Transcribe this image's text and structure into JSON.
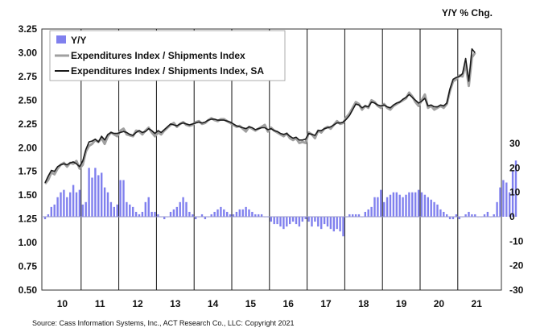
{
  "chart_data": {
    "type": "line",
    "title": "",
    "right_axis_title": "Y/Y % Chg.",
    "source": "Source: Cass Information Systems, Inc., ACT Research Co., LLC: Copyright 2021",
    "left_axis": {
      "ylim": [
        0.5,
        3.25
      ],
      "ticks": [
        "3.25",
        "3.00",
        "2.75",
        "2.50",
        "2.25",
        "2.00",
        "1.75",
        "1.50",
        "1.25",
        "1.00",
        "0.75",
        "0.50"
      ]
    },
    "right_axis": {
      "ylim": [
        -30,
        30
      ],
      "ticks": [
        "30",
        "20",
        "10",
        "0",
        "-10",
        "-20",
        "-30"
      ]
    },
    "x_axis": {
      "ticks": [
        "10",
        "11",
        "12",
        "13",
        "14",
        "15",
        "16",
        "17",
        "18",
        "19",
        "20",
        "21"
      ]
    },
    "grid": "vertical-year-lines",
    "legend_position": "top-left",
    "colors": {
      "yoy": "#8080ee",
      "index": "#a0a0a0",
      "index_sa": "#1a1a1a"
    },
    "series": [
      {
        "name": "Y/Y",
        "kind": "bar",
        "axis": "right",
        "start": "2010-01",
        "values": [
          -1,
          1,
          4,
          5,
          8,
          10,
          11,
          8,
          10,
          13,
          10,
          11,
          5,
          6,
          20,
          16,
          20,
          17,
          18,
          12,
          10,
          6,
          4,
          5,
          15,
          15,
          6,
          5,
          4,
          2,
          1,
          2,
          6,
          8,
          2,
          2,
          1,
          0,
          -1,
          0,
          2,
          3,
          4,
          6,
          8,
          6,
          2,
          1,
          -1,
          0,
          1,
          -1,
          0,
          1,
          2,
          3,
          4,
          3,
          2,
          1,
          1,
          2,
          3,
          3,
          4,
          3,
          2,
          1,
          1,
          1,
          0,
          0,
          -2,
          -3,
          -3,
          -4,
          -5,
          -4,
          -3,
          -2,
          -3,
          -4,
          -2,
          -1,
          -2,
          -4,
          -2,
          -4,
          -5,
          -3,
          -4,
          -5,
          -6,
          -5,
          -6,
          -8,
          0,
          1,
          1,
          1,
          1,
          0,
          2,
          3,
          4,
          8,
          8,
          11,
          6,
          8,
          9,
          10,
          10,
          9,
          8,
          9,
          10,
          10,
          10,
          11,
          10,
          9,
          8,
          7,
          6,
          5,
          3,
          2,
          1,
          -1,
          -1,
          1,
          -1,
          0,
          1,
          2,
          1,
          1,
          0,
          0,
          1,
          2,
          0,
          1,
          6,
          12,
          15,
          14,
          10,
          19,
          23
        ],
        "approx": true
      },
      {
        "name": "Expenditures Index / Shipments Index",
        "kind": "line",
        "axis": "left",
        "start": "2010-01",
        "values": [
          1.62,
          1.66,
          1.74,
          1.72,
          1.78,
          1.82,
          1.84,
          1.8,
          1.84,
          1.83,
          1.86,
          1.78,
          1.82,
          1.96,
          2.02,
          2.04,
          2.08,
          2.06,
          2.1,
          2.04,
          2.12,
          2.16,
          2.14,
          2.12,
          2.18,
          2.2,
          2.14,
          2.13,
          2.12,
          2.18,
          2.17,
          2.14,
          2.18,
          2.21,
          2.16,
          2.12,
          2.16,
          2.14,
          2.18,
          2.21,
          2.24,
          2.26,
          2.22,
          2.25,
          2.27,
          2.24,
          2.23,
          2.24,
          2.27,
          2.28,
          2.25,
          2.26,
          2.29,
          2.31,
          2.29,
          2.28,
          2.3,
          2.3,
          2.28,
          2.26,
          2.24,
          2.22,
          2.23,
          2.2,
          2.17,
          2.22,
          2.2,
          2.18,
          2.2,
          2.22,
          2.24,
          2.17,
          2.21,
          2.18,
          2.16,
          2.14,
          2.12,
          2.15,
          2.1,
          2.08,
          2.1,
          2.05,
          2.06,
          2.05,
          2.16,
          2.14,
          2.1,
          2.18,
          2.16,
          2.2,
          2.22,
          2.2,
          2.24,
          2.28,
          2.25,
          2.26,
          2.32,
          2.36,
          2.42,
          2.48,
          2.46,
          2.4,
          2.44,
          2.42,
          2.5,
          2.48,
          2.44,
          2.42,
          2.46,
          2.42,
          2.4,
          2.44,
          2.46,
          2.48,
          2.5,
          2.52,
          2.58,
          2.54,
          2.48,
          2.44,
          2.5,
          2.56,
          2.42,
          2.44,
          2.4,
          2.42,
          2.44,
          2.42,
          2.46,
          2.6,
          2.7,
          2.72,
          2.76,
          2.75,
          2.88,
          2.65,
          2.95,
          3.0
        ],
        "approx": true
      },
      {
        "name": "Expenditures Index / Shipments Index, SA",
        "kind": "line",
        "axis": "left",
        "start": "2010-01",
        "values": [
          1.63,
          1.7,
          1.76,
          1.75,
          1.8,
          1.82,
          1.83,
          1.82,
          1.84,
          1.85,
          1.83,
          1.8,
          1.86,
          1.98,
          2.06,
          2.07,
          2.09,
          2.06,
          2.12,
          2.08,
          2.14,
          2.16,
          2.15,
          2.15,
          2.16,
          2.17,
          2.16,
          2.14,
          2.13,
          2.16,
          2.18,
          2.16,
          2.17,
          2.2,
          2.18,
          2.15,
          2.18,
          2.16,
          2.19,
          2.22,
          2.25,
          2.24,
          2.23,
          2.25,
          2.26,
          2.25,
          2.24,
          2.25,
          2.26,
          2.27,
          2.26,
          2.27,
          2.29,
          2.3,
          2.3,
          2.29,
          2.29,
          2.29,
          2.28,
          2.27,
          2.25,
          2.23,
          2.22,
          2.21,
          2.2,
          2.22,
          2.21,
          2.19,
          2.2,
          2.21,
          2.21,
          2.19,
          2.2,
          2.18,
          2.17,
          2.15,
          2.14,
          2.15,
          2.12,
          2.1,
          2.11,
          2.08,
          2.08,
          2.09,
          2.15,
          2.14,
          2.13,
          2.18,
          2.18,
          2.2,
          2.21,
          2.22,
          2.24,
          2.26,
          2.26,
          2.27,
          2.3,
          2.34,
          2.4,
          2.46,
          2.45,
          2.42,
          2.44,
          2.43,
          2.48,
          2.47,
          2.45,
          2.44,
          2.45,
          2.43,
          2.42,
          2.45,
          2.47,
          2.48,
          2.51,
          2.53,
          2.56,
          2.53,
          2.5,
          2.47,
          2.49,
          2.52,
          2.44,
          2.45,
          2.43,
          2.43,
          2.45,
          2.44,
          2.47,
          2.62,
          2.72,
          2.74,
          2.75,
          2.78,
          2.94,
          2.7,
          3.04,
          3.0
        ],
        "approx": true
      }
    ]
  }
}
